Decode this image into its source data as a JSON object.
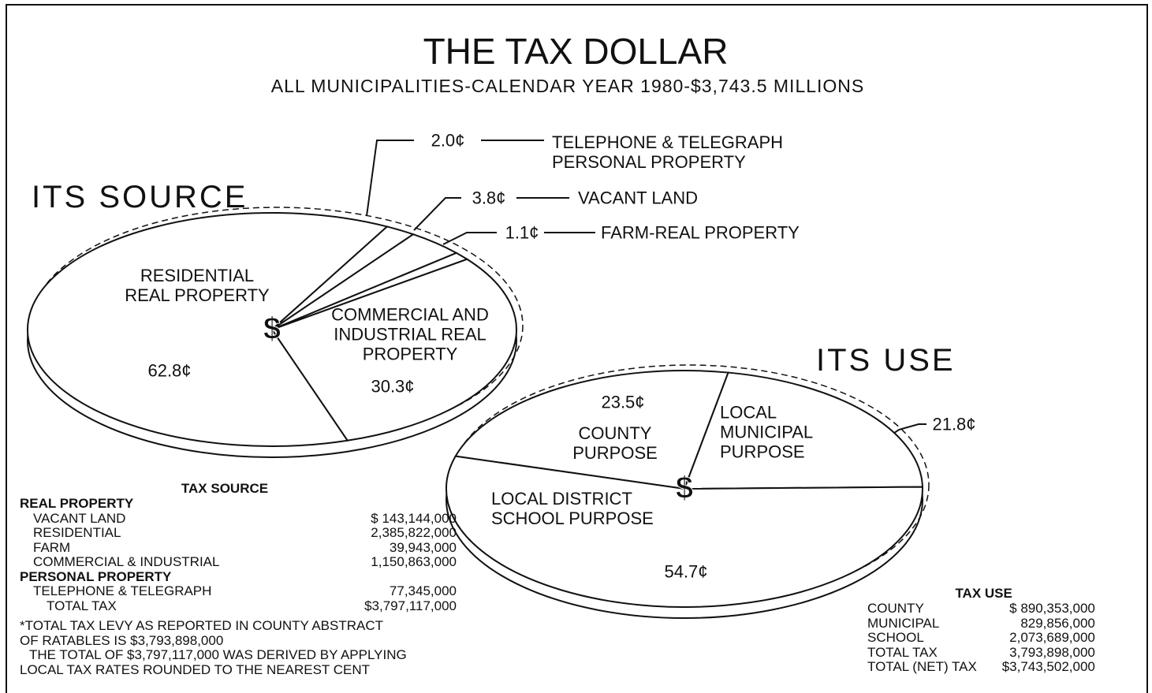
{
  "title": "THE TAX DOLLAR",
  "subtitle": "ALL MUNICIPALITIES-CALENDAR YEAR 1980-$3,743.5 MILLIONS",
  "chart_data": [
    {
      "type": "pie",
      "title": "ITS SOURCE",
      "categories": [
        "RESIDENTIAL REAL PROPERTY",
        "TELEPHONE & TELEGRAPH PERSONAL PROPERTY",
        "VACANT LAND",
        "FARM-REAL PROPERTY",
        "COMMERCIAL AND INDUSTRIAL REAL PROPERTY"
      ],
      "values": [
        62.8,
        2.0,
        3.8,
        1.1,
        30.3
      ],
      "value_labels": [
        "62.8¢",
        "2.0¢",
        "3.8¢",
        "1.1¢",
        "30.3¢"
      ],
      "color": "#ffffff"
    },
    {
      "type": "pie",
      "title": "ITS USE",
      "categories": [
        "COUNTY PURPOSE",
        "LOCAL MUNICIPAL PURPOSE",
        "LOCAL DISTRICT SCHOOL PURPOSE"
      ],
      "values": [
        23.5,
        21.8,
        54.7
      ],
      "value_labels": [
        "23.5¢",
        "21.8¢",
        "54.7¢"
      ],
      "color": "#ffffff"
    }
  ],
  "tax_source": {
    "title": "TAX SOURCE",
    "sections": [
      {
        "heading": "REAL PROPERTY",
        "rows": [
          [
            "VACANT LAND",
            "$  143,144,000"
          ],
          [
            "RESIDENTIAL",
            "2,385,822,000"
          ],
          [
            "FARM",
            "39,943,000"
          ],
          [
            "COMMERCIAL & INDUSTRIAL",
            "1,150,863,000"
          ]
        ]
      },
      {
        "heading": "PERSONAL PROPERTY",
        "rows": [
          [
            "TELEPHONE & TELEGRAPH",
            "77,345,000"
          ],
          [
            "TOTAL TAX",
            "$3,797,117,000"
          ]
        ]
      }
    ],
    "notes": [
      "*TOTAL TAX LEVY AS REPORTED IN COUNTY ABSTRACT",
      "OF RATABLES IS  $3,793,898,000",
      "THE TOTAL OF  $3,797,117,000 WAS DERIVED BY APPLYING",
      "LOCAL TAX RATES ROUNDED TO THE NEAREST CENT"
    ]
  },
  "tax_use": {
    "title": "TAX USE",
    "rows": [
      [
        "COUNTY",
        "$  890,353,000"
      ],
      [
        "MUNICIPAL",
        "829,856,000"
      ],
      [
        "SCHOOL",
        "2,073,689,000"
      ],
      [
        "TOTAL TAX",
        "3,793,898,000"
      ],
      [
        "TOTAL (NET) TAX",
        "$3,743,502,000"
      ]
    ]
  }
}
